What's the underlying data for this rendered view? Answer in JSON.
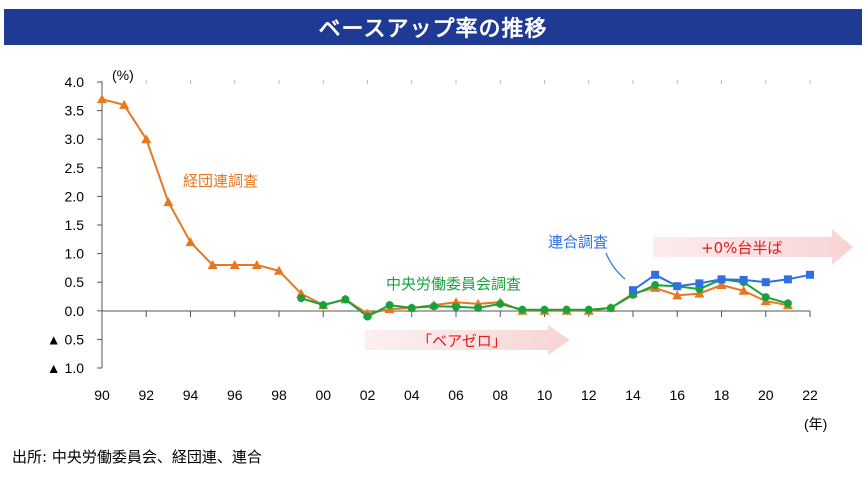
{
  "title": "ベースアップ率の推移",
  "source": "出所: 中央労働委員会、経団連、連合",
  "chart_data": {
    "type": "line",
    "ylabel": "(%)",
    "xlabel": "(年)",
    "ylim": [
      -1.0,
      4.0
    ],
    "xlim": [
      1990,
      2022
    ],
    "y_ticks": [
      {
        "v": 4.0,
        "label": "4.0"
      },
      {
        "v": 3.5,
        "label": "3.5"
      },
      {
        "v": 3.0,
        "label": "3.0"
      },
      {
        "v": 2.5,
        "label": "2.5"
      },
      {
        "v": 2.0,
        "label": "2.0"
      },
      {
        "v": 1.5,
        "label": "1.5"
      },
      {
        "v": 1.0,
        "label": "1.0"
      },
      {
        "v": 0.5,
        "label": "0.5"
      },
      {
        "v": 0.0,
        "label": "0.0"
      },
      {
        "v": -0.5,
        "label": "▲ 0.5"
      },
      {
        "v": -1.0,
        "label": "▲ 1.0"
      }
    ],
    "x_ticks": [
      {
        "v": 1990,
        "label": "90"
      },
      {
        "v": 1992,
        "label": "92"
      },
      {
        "v": 1994,
        "label": "94"
      },
      {
        "v": 1996,
        "label": "96"
      },
      {
        "v": 1998,
        "label": "98"
      },
      {
        "v": 2000,
        "label": "00"
      },
      {
        "v": 2002,
        "label": "02"
      },
      {
        "v": 2004,
        "label": "04"
      },
      {
        "v": 2006,
        "label": "06"
      },
      {
        "v": 2008,
        "label": "08"
      },
      {
        "v": 2010,
        "label": "10"
      },
      {
        "v": 2012,
        "label": "12"
      },
      {
        "v": 2014,
        "label": "14"
      },
      {
        "v": 2016,
        "label": "16"
      },
      {
        "v": 2018,
        "label": "18"
      },
      {
        "v": 2020,
        "label": "20"
      },
      {
        "v": 2022,
        "label": "22"
      }
    ],
    "series": [
      {
        "name": "経団連調査",
        "color": "#E87722",
        "marker": "triangle",
        "x": [
          1990,
          1991,
          1992,
          1993,
          1994,
          1995,
          1996,
          1997,
          1998,
          1999,
          2000,
          2001,
          2002,
          2003,
          2004,
          2005,
          2006,
          2007,
          2008,
          2009,
          2010,
          2011,
          2012,
          2013,
          2014,
          2015,
          2016,
          2017,
          2018,
          2019,
          2020,
          2021
        ],
        "values": [
          3.7,
          3.6,
          3.0,
          1.9,
          1.2,
          0.8,
          0.8,
          0.8,
          0.7,
          0.3,
          0.1,
          0.2,
          -0.05,
          0.03,
          0.05,
          0.1,
          0.15,
          0.12,
          0.15,
          0.0,
          0.0,
          0.0,
          0.0,
          0.05,
          0.3,
          0.4,
          0.27,
          0.3,
          0.45,
          0.35,
          0.17,
          0.1
        ]
      },
      {
        "name": "中央労働委員会調査",
        "color": "#17A33A",
        "marker": "circle",
        "x": [
          1999,
          2000,
          2001,
          2002,
          2003,
          2004,
          2005,
          2006,
          2007,
          2008,
          2009,
          2010,
          2011,
          2012,
          2013,
          2014,
          2015,
          2016,
          2017,
          2018,
          2019,
          2020,
          2021
        ],
        "values": [
          0.22,
          0.1,
          0.2,
          -0.1,
          0.1,
          0.05,
          0.08,
          0.07,
          0.05,
          0.12,
          0.02,
          0.02,
          0.02,
          0.02,
          0.05,
          0.28,
          0.45,
          0.43,
          0.38,
          0.55,
          0.5,
          0.24,
          0.13
        ]
      },
      {
        "name": "連合調査",
        "color": "#2F6FE0",
        "marker": "square",
        "x": [
          2014,
          2015,
          2016,
          2017,
          2018,
          2019,
          2020,
          2021,
          2022
        ],
        "values": [
          0.36,
          0.63,
          0.43,
          0.48,
          0.55,
          0.54,
          0.5,
          0.55,
          0.63
        ]
      }
    ],
    "annotations": {
      "keidanren": "経団連調査",
      "chuo": "中央労働委員会調査",
      "rengo": "連合調査",
      "zero_arrow": "「ベアゼロ」",
      "plus_arrow": "+0%台半ば"
    }
  }
}
